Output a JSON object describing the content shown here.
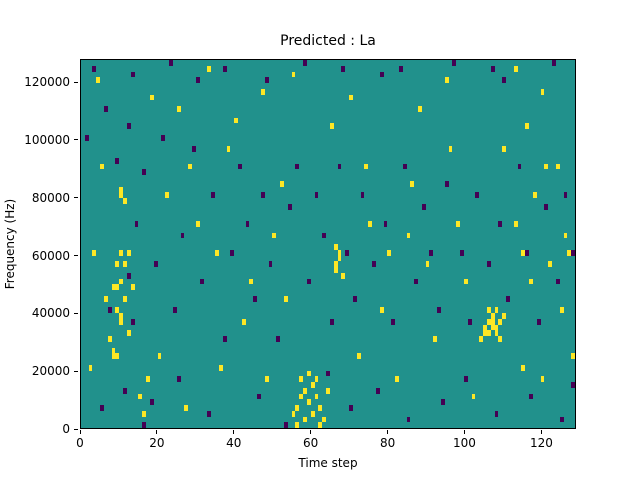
{
  "chart_data": {
    "type": "heatmap",
    "title": "Predicted : La",
    "xlabel": "Time step",
    "ylabel": "Frequency (Hz)",
    "x_range": [
      0,
      129
    ],
    "y_range": [
      0,
      128000
    ],
    "x_ticks": [
      0,
      20,
      40,
      60,
      80,
      100,
      120
    ],
    "y_ticks": [
      0,
      20000,
      40000,
      60000,
      80000,
      100000,
      120000
    ],
    "grid": {
      "time_steps": 129,
      "freq_bins": 64,
      "freq_bin_hz": 2000
    },
    "colormap": {
      "background_mid": "#21918c",
      "high": "#fde725",
      "low": "#440154"
    },
    "legend": "none",
    "high_cells": [
      [
        2,
        10
      ],
      [
        3,
        30
      ],
      [
        4,
        60
      ],
      [
        5,
        45
      ],
      [
        6,
        22
      ],
      [
        7,
        15
      ],
      [
        8,
        12
      ],
      [
        8,
        13
      ],
      [
        8,
        24
      ],
      [
        9,
        12
      ],
      [
        9,
        20
      ],
      [
        9,
        24
      ],
      [
        9,
        28
      ],
      [
        10,
        18
      ],
      [
        10,
        19
      ],
      [
        10,
        25
      ],
      [
        10,
        30
      ],
      [
        10,
        40
      ],
      [
        10,
        41
      ],
      [
        11,
        22
      ],
      [
        11,
        28
      ],
      [
        11,
        39
      ],
      [
        12,
        16
      ],
      [
        12,
        30
      ],
      [
        13,
        24
      ],
      [
        15,
        5
      ],
      [
        16,
        2
      ],
      [
        17,
        8
      ],
      [
        18,
        57
      ],
      [
        20,
        12
      ],
      [
        22,
        40
      ],
      [
        25,
        55
      ],
      [
        27,
        3
      ],
      [
        28,
        45
      ],
      [
        30,
        35
      ],
      [
        33,
        62
      ],
      [
        35,
        30
      ],
      [
        36,
        10
      ],
      [
        38,
        48
      ],
      [
        40,
        53
      ],
      [
        42,
        18
      ],
      [
        44,
        25
      ],
      [
        47,
        58
      ],
      [
        48,
        8
      ],
      [
        50,
        33
      ],
      [
        52,
        42
      ],
      [
        53,
        22
      ],
      [
        55,
        2
      ],
      [
        55,
        61
      ],
      [
        56,
        0
      ],
      [
        56,
        3
      ],
      [
        57,
        5
      ],
      [
        57,
        8
      ],
      [
        58,
        1
      ],
      [
        58,
        6
      ],
      [
        59,
        4
      ],
      [
        59,
        9
      ],
      [
        60,
        2
      ],
      [
        60,
        7
      ],
      [
        61,
        5
      ],
      [
        61,
        8
      ],
      [
        62,
        0
      ],
      [
        62,
        3
      ],
      [
        63,
        1
      ],
      [
        64,
        6
      ],
      [
        65,
        52
      ],
      [
        66,
        27
      ],
      [
        66,
        28
      ],
      [
        66,
        31
      ],
      [
        67,
        29
      ],
      [
        67,
        30
      ],
      [
        68,
        26
      ],
      [
        70,
        57
      ],
      [
        72,
        12
      ],
      [
        74,
        45
      ],
      [
        75,
        35
      ],
      [
        78,
        20
      ],
      [
        80,
        30
      ],
      [
        82,
        8
      ],
      [
        85,
        33
      ],
      [
        86,
        42
      ],
      [
        88,
        55
      ],
      [
        90,
        28
      ],
      [
        92,
        15
      ],
      [
        95,
        60
      ],
      [
        96,
        48
      ],
      [
        98,
        35
      ],
      [
        100,
        25
      ],
      [
        102,
        5
      ],
      [
        104,
        15
      ],
      [
        105,
        16
      ],
      [
        105,
        17
      ],
      [
        106,
        16
      ],
      [
        106,
        18
      ],
      [
        106,
        20
      ],
      [
        107,
        17
      ],
      [
        107,
        18
      ],
      [
        107,
        19
      ],
      [
        108,
        16
      ],
      [
        108,
        17
      ],
      [
        108,
        20
      ],
      [
        109,
        15
      ],
      [
        109,
        18
      ],
      [
        110,
        19
      ],
      [
        110,
        48
      ],
      [
        113,
        35
      ],
      [
        113,
        62
      ],
      [
        115,
        10
      ],
      [
        115,
        30
      ],
      [
        116,
        52
      ],
      [
        117,
        25
      ],
      [
        118,
        40
      ],
      [
        120,
        8
      ],
      [
        120,
        58
      ],
      [
        121,
        45
      ],
      [
        122,
        28
      ],
      [
        124,
        45
      ],
      [
        125,
        20
      ],
      [
        126,
        33
      ],
      [
        127,
        30
      ],
      [
        128,
        12
      ]
    ],
    "low_cells": [
      [
        1,
        50
      ],
      [
        3,
        62
      ],
      [
        5,
        3
      ],
      [
        6,
        55
      ],
      [
        7,
        20
      ],
      [
        9,
        46
      ],
      [
        11,
        6
      ],
      [
        12,
        26
      ],
      [
        12,
        52
      ],
      [
        13,
        18
      ],
      [
        13,
        61
      ],
      [
        14,
        35
      ],
      [
        16,
        0
      ],
      [
        16,
        44
      ],
      [
        18,
        4
      ],
      [
        19,
        28
      ],
      [
        21,
        50
      ],
      [
        23,
        63
      ],
      [
        24,
        20
      ],
      [
        25,
        8
      ],
      [
        26,
        33
      ],
      [
        29,
        48
      ],
      [
        30,
        60
      ],
      [
        31,
        25
      ],
      [
        33,
        2
      ],
      [
        34,
        40
      ],
      [
        37,
        15
      ],
      [
        37,
        62
      ],
      [
        39,
        30
      ],
      [
        41,
        45
      ],
      [
        43,
        35
      ],
      [
        45,
        22
      ],
      [
        46,
        5
      ],
      [
        47,
        40
      ],
      [
        48,
        60
      ],
      [
        49,
        28
      ],
      [
        51,
        15
      ],
      [
        53,
        0
      ],
      [
        54,
        38
      ],
      [
        56,
        45
      ],
      [
        58,
        63
      ],
      [
        59,
        25
      ],
      [
        61,
        40
      ],
      [
        63,
        33
      ],
      [
        64,
        9
      ],
      [
        65,
        18
      ],
      [
        67,
        45
      ],
      [
        68,
        62
      ],
      [
        69,
        30
      ],
      [
        70,
        3
      ],
      [
        71,
        22
      ],
      [
        73,
        40
      ],
      [
        76,
        28
      ],
      [
        77,
        6
      ],
      [
        78,
        61
      ],
      [
        79,
        35
      ],
      [
        81,
        18
      ],
      [
        83,
        62
      ],
      [
        84,
        45
      ],
      [
        85,
        1
      ],
      [
        87,
        25
      ],
      [
        89,
        38
      ],
      [
        91,
        30
      ],
      [
        93,
        20
      ],
      [
        94,
        4
      ],
      [
        95,
        42
      ],
      [
        97,
        63
      ],
      [
        99,
        30
      ],
      [
        100,
        8
      ],
      [
        101,
        18
      ],
      [
        103,
        40
      ],
      [
        106,
        28
      ],
      [
        107,
        62
      ],
      [
        108,
        2
      ],
      [
        109,
        35
      ],
      [
        110,
        60
      ],
      [
        111,
        22
      ],
      [
        114,
        45
      ],
      [
        116,
        30
      ],
      [
        117,
        5
      ],
      [
        119,
        18
      ],
      [
        121,
        38
      ],
      [
        123,
        63
      ],
      [
        124,
        25
      ],
      [
        125,
        1
      ],
      [
        126,
        40
      ],
      [
        128,
        30
      ],
      [
        128,
        7
      ]
    ]
  }
}
